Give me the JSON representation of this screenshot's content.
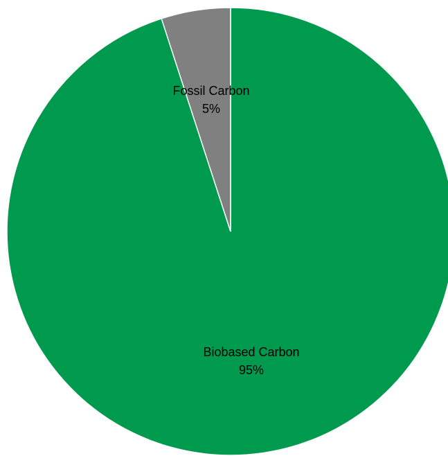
{
  "chart_data": {
    "type": "pie",
    "title": "",
    "legend": "none",
    "slices": [
      {
        "name": "Biobased Carbon",
        "value": 95,
        "label": "95%",
        "color": "#009a4e"
      },
      {
        "name": "Fossil Carbon",
        "value": 5,
        "label": "5%",
        "color": "#808080"
      }
    ],
    "slice_border_color": "#ffffff"
  }
}
